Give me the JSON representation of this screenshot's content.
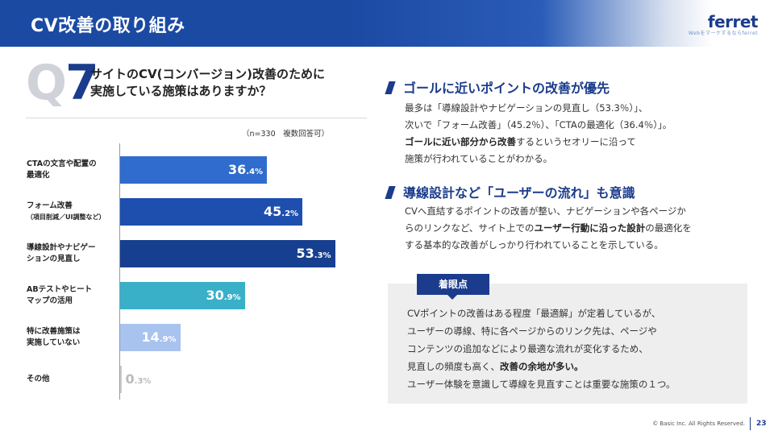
{
  "header": {
    "title": "CV改善の取り組み"
  },
  "logo": {
    "word": "ferret",
    "tagline": "Webをマーケするならferret"
  },
  "question": {
    "badge_letter": "Q",
    "badge_number": "7",
    "line1": "サイトのCV(コンバージョン)改善のために",
    "line2": "実施している施策はありますか？",
    "note": "（n=330　複数回答可）"
  },
  "chart_data": {
    "type": "bar",
    "orientation": "horizontal",
    "unit": "%",
    "xlim": [
      0,
      100
    ],
    "categories": [
      {
        "line1": "CTAの文言や配置の",
        "line2": "最適化",
        "sub": false
      },
      {
        "line1": "フォーム改善",
        "line2": "（項目削減／UI調整など）",
        "sub": true
      },
      {
        "line1": "導線設計やナビゲー",
        "line2": "ションの見直し",
        "sub": false
      },
      {
        "line1": "ABテストやヒート",
        "line2": "マップの活用",
        "sub": false
      },
      {
        "line1": "特に改善施策は",
        "line2": "実施していない",
        "sub": false
      },
      {
        "line1": "その他",
        "line2": "",
        "sub": false
      }
    ],
    "values": [
      36.4,
      45.2,
      53.3,
      30.9,
      14.9,
      0.3
    ],
    "value_labels": [
      {
        "int": "36",
        "dec": ".4%"
      },
      {
        "int": "45",
        "dec": ".2%"
      },
      {
        "int": "53",
        "dec": ".3%"
      },
      {
        "int": "30",
        "dec": ".9%"
      },
      {
        "int": "14",
        "dec": ".9%"
      },
      {
        "int": "0",
        "dec": ".3%"
      }
    ],
    "colors": [
      "#2f6ccd",
      "#1e4fae",
      "#173f8f",
      "#3ab0c8",
      "#a9c3ef",
      "#cccccc"
    ],
    "label_colors": [
      "#ffffff",
      "#ffffff",
      "#ffffff",
      "#ffffff",
      "#ffffff",
      "#bbbbbb"
    ]
  },
  "section1": {
    "title": "ゴールに近いポイントの改善が優先",
    "l1": "最多は「導線設計やナビゲーションの見直し（53.3％）」、",
    "l2": "次いで「フォーム改善」（45.2％）、「CTAの最適化（36.4％）」。",
    "l3_bold": "ゴールに近い部分から改善",
    "l3_rest": "するというセオリーに沿って",
    "l4": "施策が行われていることがわかる。"
  },
  "section2": {
    "title": "導線設計など「ユーザーの流れ」も意識",
    "l1": "CVへ直結するポイントの改善が整い、ナビゲーションや各ページか",
    "l2": "らのリンクなど、サイト上での",
    "l2_bold": "ユーザー行動に沿った設計",
    "l2_rest": "の最適化を",
    "l3": "する基本的な改善がしっかり行われていることを示している。"
  },
  "insight": {
    "tab": "着眼点",
    "l1": "CVポイントの改善はある程度「最適解」が定着しているが、",
    "l2": "ユーザーの導線、特に各ページからのリンク先は、ページや",
    "l3": "コンテンツの追加などにより最適な流れが変化するため、",
    "l4": "見直しの頻度も高く、",
    "l4_bold": "改善の余地が多い。",
    "l5": "ユーザー体験を意識して導線を見直すことは重要な施策の１つ。"
  },
  "footer": {
    "copyright": "© Basic Inc. All Rights Reserved.",
    "page": "23"
  }
}
